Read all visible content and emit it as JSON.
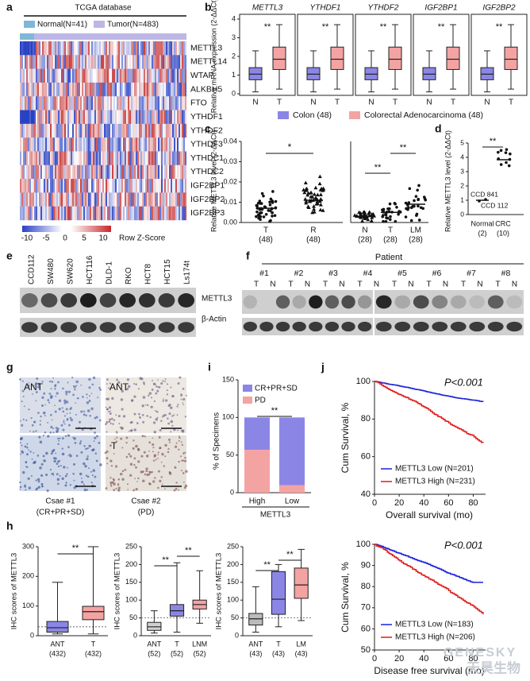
{
  "panels": {
    "a": {
      "label": "a",
      "title": "TCGA database",
      "legend": [
        "Normal(N=41)",
        "Tumor(N=483)"
      ],
      "genes": [
        "METTL3",
        "METTL14",
        "WTAP",
        "ALKBH5",
        "FTO",
        "YTHDF1",
        "YTHDF2",
        "YTHDF3",
        "YTHDC1",
        "YTHDC2",
        "IGF2BP1",
        "IGF2BP2",
        "IGF2BP3"
      ],
      "scale_ticks": [
        -10,
        -5,
        0,
        5,
        10
      ],
      "scale_label": "Row Z-Score"
    },
    "b": {
      "label": "b",
      "genes": [
        "METTL3",
        "YTHDF1",
        "YTHDF2",
        "IGF2BP1",
        "IGF2BP2"
      ],
      "y_label": "Relative mRNA expression (2-ΔΔCt)",
      "yticks": [
        0,
        1,
        2,
        3,
        4
      ],
      "groups": [
        "N",
        "T"
      ],
      "significance": "**",
      "legend": [
        "Colon (48)",
        "Colorectal Adenocarcinoma (48)"
      ]
    },
    "c": {
      "label": "c",
      "y_label": "Relative METTL3 level (2-ΔΔCt)",
      "yticks": [
        "0.00",
        "0.01",
        "0.02",
        "0.03",
        "0.04"
      ],
      "left_groups": [
        "T",
        "R"
      ],
      "left_n": [
        "(48)",
        "(48)"
      ],
      "left_sig": "*",
      "right_groups": [
        "N",
        "T",
        "LM"
      ],
      "right_n": [
        "(28)",
        "(28)",
        "(28)"
      ],
      "right_sig": [
        "**",
        "**"
      ]
    },
    "d": {
      "label": "d",
      "y_label": "Relative METTL3 level (2-ΔΔCt)",
      "yticks": [
        0,
        1,
        2,
        3,
        4,
        5
      ],
      "groups": [
        "Normal",
        "CRC"
      ],
      "n": [
        "(2)",
        "(10)"
      ],
      "annotations": [
        "CCD 841",
        "CCD 112"
      ],
      "sig": "**"
    },
    "e": {
      "label": "e",
      "cell_lines": [
        "CCD112",
        "SW480",
        "SW620",
        "HCT116",
        "DLD-1",
        "RKO",
        "HCT8",
        "HCT15",
        "Ls174t"
      ],
      "bands": [
        "METTL3",
        "β-Actin"
      ]
    },
    "f": {
      "label": "f",
      "title": "Patient",
      "patients": [
        "#1",
        "#2",
        "#3",
        "#4",
        "#5",
        "#6",
        "#7",
        "#8"
      ],
      "lanes": [
        "T",
        "N"
      ]
    },
    "g": {
      "label": "g",
      "tags": [
        "ANT",
        "ANT",
        "T"
      ],
      "cases": [
        "Csae #1",
        "Csae #2"
      ],
      "responses": [
        "(CR+PR+SD)",
        "(PD)"
      ]
    },
    "i": {
      "label": "i",
      "y_label": "% of Specimens",
      "yticks": [
        0,
        50,
        100,
        150
      ],
      "categories": [
        "High",
        "Low"
      ],
      "x_label": "METTL3",
      "legend": [
        "CR+PR+SD",
        "PD"
      ],
      "sig": "**"
    },
    "j": {
      "label": "j",
      "plots": [
        {
          "y_label": "Cum Survival, %",
          "yticks": [
            40,
            60,
            80,
            100
          ],
          "xticks": [
            0,
            20,
            40,
            60,
            80
          ],
          "p": "P<0.001",
          "legend": [
            "METTL3 Low (N=201)",
            "METTL3 High (N=231)"
          ],
          "x_label": "Overall survival (mo)"
        },
        {
          "y_label": "Cum Survival, %",
          "yticks": [
            50,
            60,
            70,
            80,
            90,
            100
          ],
          "xticks": [
            0,
            20,
            40,
            60,
            80
          ],
          "p": "P<0.001",
          "legend": [
            "METTL3 Low (N=183)",
            "METTL3 High (N=206)"
          ],
          "x_label": "Disease free survival (mo)"
        }
      ]
    },
    "h": {
      "label": "h",
      "y_label": "IHC scores of METTL3",
      "plots": [
        {
          "yticks": [
            0,
            100,
            200,
            300
          ],
          "groups": [
            "ANT",
            "T"
          ],
          "n": [
            "(432)",
            "(432)"
          ],
          "sig": [
            "**"
          ]
        },
        {
          "yticks": [
            0,
            50,
            100,
            150,
            200,
            250
          ],
          "groups": [
            "ANT",
            "T",
            "LNM"
          ],
          "n": [
            "(52)",
            "(52)",
            "(52)"
          ],
          "sig": [
            "**",
            "**"
          ]
        },
        {
          "yticks": [
            0,
            50,
            100,
            150,
            200,
            250
          ],
          "groups": [
            "ANT",
            "T",
            "LM"
          ],
          "n": [
            "(43)",
            "(43)",
            "(43)"
          ],
          "sig": [
            "**",
            "**"
          ]
        }
      ]
    }
  },
  "watermark": [
    "GENESKY",
    "天昊生物"
  ]
}
